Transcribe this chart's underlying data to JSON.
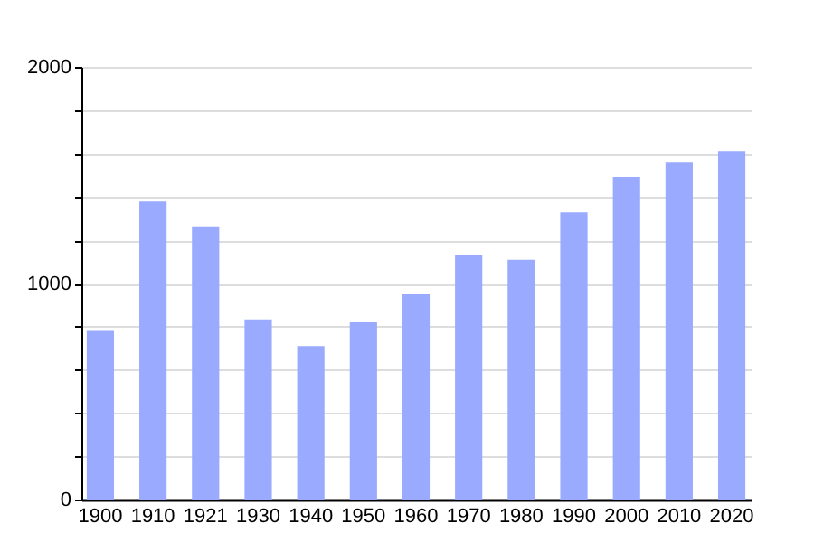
{
  "chart_data": {
    "type": "bar",
    "categories": [
      "1900",
      "1910",
      "1921",
      "1930",
      "1940",
      "1950",
      "1960",
      "1970",
      "1980",
      "1990",
      "2000",
      "2010",
      "2020"
    ],
    "values": [
      780,
      1380,
      1260,
      830,
      710,
      820,
      950,
      1130,
      1110,
      1330,
      1490,
      1560,
      1610
    ],
    "color": "#99aaff",
    "ylim": [
      0,
      2000
    ],
    "yticks": [
      0,
      {
        "value": 200,
        "label": null
      },
      {
        "value": 400,
        "label": null
      },
      {
        "value": 600,
        "label": null
      },
      {
        "value": 800,
        "label": null
      },
      1000,
      {
        "value": 1200,
        "label": null
      },
      {
        "value": 1400,
        "label": null
      },
      {
        "value": 1600,
        "label": null
      },
      {
        "value": 1800,
        "label": null
      },
      2000
    ],
    "grid": "y"
  }
}
